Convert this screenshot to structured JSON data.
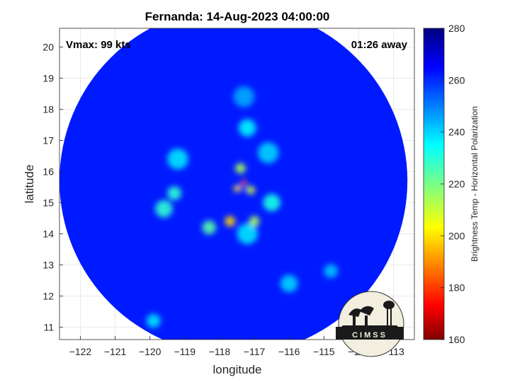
{
  "chart_data": {
    "type": "heatmap",
    "title": "Fernanda: 14-Aug-2023 04:00:00",
    "xlabel": "longitude",
    "ylabel": "latitude",
    "xlim": [
      -122.6,
      -112.4
    ],
    "ylim": [
      10.6,
      20.6
    ],
    "xticks": [
      -122,
      -121,
      -120,
      -119,
      -118,
      -117,
      -116,
      -115,
      -114,
      -113
    ],
    "yticks": [
      11,
      12,
      13,
      14,
      15,
      16,
      17,
      18,
      19,
      20
    ],
    "grid": true,
    "annotations": {
      "left": "Vmax: 99 kts",
      "right": "01:26 away"
    },
    "colorbar": {
      "label": "Brightness Temp - Horizontal Polarization",
      "range": [
        160,
        280
      ],
      "ticks": [
        160,
        180,
        200,
        220,
        240,
        260,
        280
      ],
      "colormap": "jet"
    },
    "storm_center": {
      "lon": -117.35,
      "lat": 15.5
    },
    "swath_center": {
      "lon": -117.6,
      "lat": 15.7
    },
    "swath_radius_deg": 5.0,
    "background_temp": 262,
    "features": [
      {
        "lon": -117.35,
        "lat": 15.5,
        "temp": 268,
        "radius": 0.12,
        "desc": "eye"
      },
      {
        "lon": -117.3,
        "lat": 15.65,
        "temp": 185,
        "radius": 0.08,
        "desc": "eyewall-north"
      },
      {
        "lon": -117.5,
        "lat": 15.45,
        "temp": 200,
        "radius": 0.1,
        "desc": "eyewall-west"
      },
      {
        "lon": -117.1,
        "lat": 15.4,
        "temp": 210,
        "radius": 0.12,
        "desc": "eyewall-east"
      },
      {
        "lon": -117.4,
        "lat": 16.1,
        "temp": 215,
        "radius": 0.15,
        "desc": "band-north"
      },
      {
        "lon": -117.7,
        "lat": 14.4,
        "temp": 200,
        "radius": 0.15,
        "desc": "band-south"
      },
      {
        "lon": -117.0,
        "lat": 14.4,
        "temp": 215,
        "radius": 0.15,
        "desc": "band-south-east"
      },
      {
        "lon": -118.3,
        "lat": 14.2,
        "temp": 225,
        "radius": 0.2,
        "desc": "band-south-west"
      },
      {
        "lon": -119.6,
        "lat": 14.8,
        "temp": 230,
        "radius": 0.25,
        "desc": "band-west"
      },
      {
        "lon": -119.3,
        "lat": 15.3,
        "temp": 230,
        "radius": 0.2,
        "desc": "band-west-2"
      },
      {
        "lon": -116.5,
        "lat": 15.0,
        "temp": 232,
        "radius": 0.25,
        "desc": "band-east"
      },
      {
        "lon": -117.2,
        "lat": 17.4,
        "temp": 236,
        "radius": 0.25,
        "desc": "band-far-north"
      },
      {
        "lon": -119.2,
        "lat": 16.4,
        "temp": 238,
        "radius": 0.3,
        "desc": "band-north-west"
      },
      {
        "lon": -116.6,
        "lat": 16.6,
        "temp": 240,
        "radius": 0.3,
        "desc": "band-north-east"
      },
      {
        "lon": -117.2,
        "lat": 14.0,
        "temp": 238,
        "radius": 0.3,
        "desc": "band-south-2"
      },
      {
        "lon": -116.0,
        "lat": 12.4,
        "temp": 240,
        "radius": 0.25,
        "desc": "outer-band-south-east"
      },
      {
        "lon": -119.9,
        "lat": 11.2,
        "temp": 238,
        "radius": 0.2,
        "desc": "outer-band-south-west"
      },
      {
        "lon": -114.8,
        "lat": 12.8,
        "temp": 242,
        "radius": 0.2,
        "desc": "outer-band-east"
      },
      {
        "lon": -117.3,
        "lat": 18.4,
        "temp": 245,
        "radius": 0.3,
        "desc": "outer-band-north"
      }
    ]
  },
  "logo": {
    "text": "CIMSS"
  }
}
